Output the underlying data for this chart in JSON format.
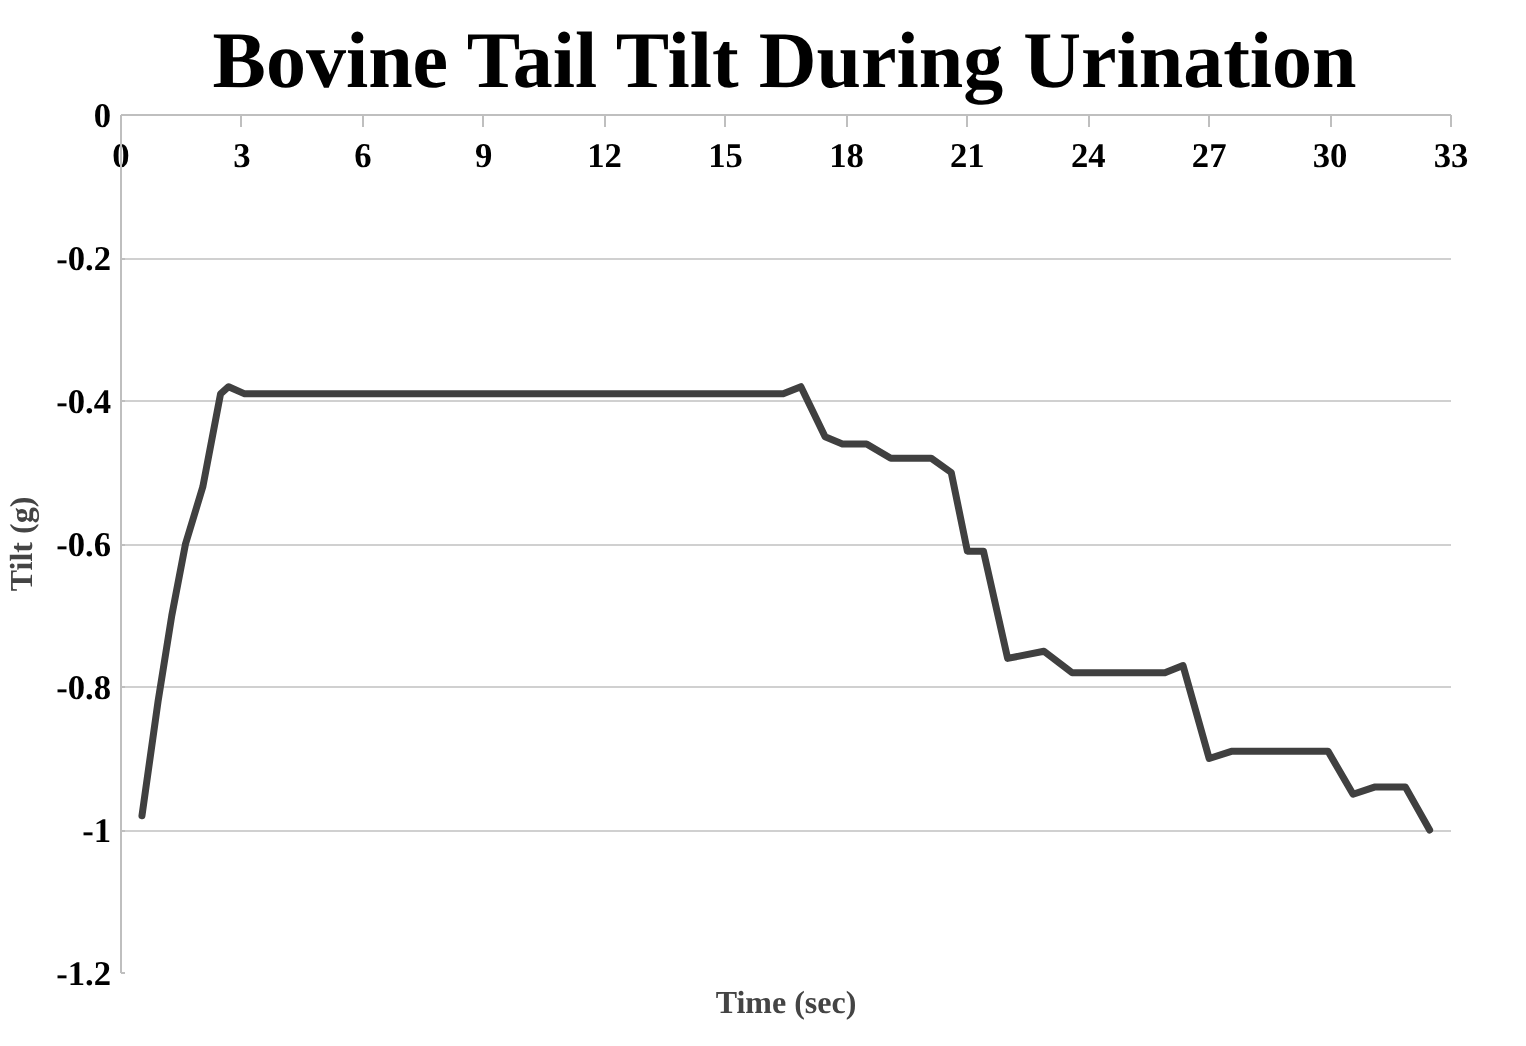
{
  "chart_data": {
    "type": "line",
    "title": "Bovine Tail Tilt During Urination",
    "xlabel": "Time (sec)",
    "ylabel": "Tilt (g)",
    "xlim": [
      0,
      33
    ],
    "xticks": [
      0,
      3,
      6,
      9,
      12,
      15,
      18,
      21,
      24,
      27,
      30,
      33
    ],
    "ylim": [
      -1.2,
      0
    ],
    "yticks": [
      0,
      -0.2,
      -0.4,
      -0.6,
      -0.8,
      -1,
      -1.2
    ],
    "grid": "y",
    "marker": "none",
    "line_style": "solid",
    "series": [
      {
        "color": "#404040",
        "x": [
          0.52,
          0.92,
          1.26,
          1.6,
          2.03,
          2.47,
          2.67,
          3.07,
          16.43,
          16.87,
          17.47,
          17.9,
          18.5,
          19.1,
          20.1,
          20.6,
          21.0,
          21.4,
          22.0,
          22.9,
          23.6,
          25.9,
          26.35,
          27.0,
          27.55,
          29.7,
          29.95,
          30.57,
          31.1,
          31.87,
          32.47
        ],
        "values": [
          -0.98,
          -0.82,
          -0.7,
          -0.6,
          -0.52,
          -0.39,
          -0.38,
          -0.39,
          -0.39,
          -0.38,
          -0.45,
          -0.46,
          -0.46,
          -0.48,
          -0.48,
          -0.5,
          -0.61,
          -0.61,
          -0.76,
          -0.75,
          -0.78,
          -0.78,
          -0.77,
          -0.9,
          -0.89,
          -0.89,
          -0.89,
          -0.95,
          -0.94,
          -0.94,
          -1.0
        ]
      }
    ]
  }
}
